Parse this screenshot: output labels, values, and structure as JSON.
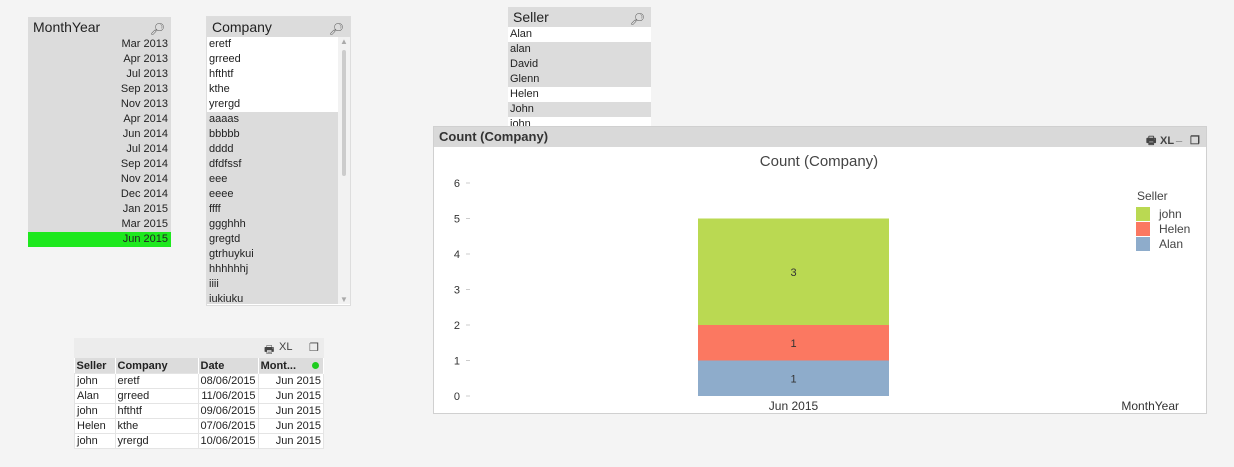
{
  "monthyear": {
    "title": "MonthYear",
    "items": [
      {
        "label": "Mar 2013",
        "selected": false
      },
      {
        "label": "Apr 2013",
        "selected": false
      },
      {
        "label": "Jul 2013",
        "selected": false
      },
      {
        "label": "Sep 2013",
        "selected": false
      },
      {
        "label": "Nov 2013",
        "selected": false
      },
      {
        "label": "Apr 2014",
        "selected": false
      },
      {
        "label": "Jun 2014",
        "selected": false
      },
      {
        "label": "Jul 2014",
        "selected": false
      },
      {
        "label": "Sep 2014",
        "selected": false
      },
      {
        "label": "Nov 2014",
        "selected": false
      },
      {
        "label": "Dec 2014",
        "selected": false
      },
      {
        "label": "Jan 2015",
        "selected": false
      },
      {
        "label": "Mar 2015",
        "selected": false
      },
      {
        "label": "Jun 2015",
        "selected": true
      }
    ]
  },
  "company": {
    "title": "Company",
    "items": [
      {
        "label": "eretf",
        "state": "possible"
      },
      {
        "label": "grreed",
        "state": "possible"
      },
      {
        "label": "hfthtf",
        "state": "possible"
      },
      {
        "label": "kthe",
        "state": "possible"
      },
      {
        "label": "yrergd",
        "state": "possible"
      },
      {
        "label": "aaaas",
        "state": "excluded"
      },
      {
        "label": "bbbbb",
        "state": "excluded"
      },
      {
        "label": "dddd",
        "state": "excluded"
      },
      {
        "label": "dfdfssf",
        "state": "excluded"
      },
      {
        "label": "eee",
        "state": "excluded"
      },
      {
        "label": "eeee",
        "state": "excluded"
      },
      {
        "label": "ffff",
        "state": "excluded"
      },
      {
        "label": "ggghhh",
        "state": "excluded"
      },
      {
        "label": "gregtd",
        "state": "excluded"
      },
      {
        "label": "gtrhuykui",
        "state": "excluded"
      },
      {
        "label": "hhhhhhj",
        "state": "excluded"
      },
      {
        "label": "iiii",
        "state": "excluded"
      },
      {
        "label": "iukiuku",
        "state": "excluded"
      }
    ]
  },
  "seller": {
    "title": "Seller",
    "items": [
      {
        "label": "Alan",
        "state": "possible"
      },
      {
        "label": "alan",
        "state": "excluded"
      },
      {
        "label": "David",
        "state": "excluded"
      },
      {
        "label": "Glenn",
        "state": "excluded"
      },
      {
        "label": "Helen",
        "state": "possible"
      },
      {
        "label": "John",
        "state": "excluded"
      },
      {
        "label": "john",
        "state": "possible"
      }
    ]
  },
  "table": {
    "controls": {
      "print": "🖶",
      "xl": "XL",
      "restore": "❐"
    },
    "headers": [
      "Seller",
      "Company",
      "Date",
      "Mont..."
    ],
    "rows": [
      [
        "john",
        "eretf",
        "08/06/2015",
        "Jun 2015"
      ],
      [
        "Alan",
        "grreed",
        "11/06/2015",
        "Jun 2015"
      ],
      [
        "john",
        "hfthtf",
        "09/06/2015",
        "Jun 2015"
      ],
      [
        "Helen",
        "kthe",
        "07/06/2015",
        "Jun 2015"
      ],
      [
        "john",
        "yrergd",
        "10/06/2015",
        "Jun 2015"
      ]
    ]
  },
  "chartbox": {
    "caption": "Count (Company)",
    "controls": {
      "print": "🖶",
      "xl": "XL",
      "minimize": "_",
      "restore": "❐"
    }
  },
  "chart_data": {
    "type": "bar",
    "stacked": true,
    "title": "Count (Company)",
    "xlabel": "MonthYear",
    "ylabel": "",
    "ylim": [
      0,
      6
    ],
    "yticks": [
      0,
      1,
      2,
      3,
      4,
      5,
      6
    ],
    "categories": [
      "Jun 2015"
    ],
    "legend_title": "Seller",
    "legend_position": "right",
    "series": [
      {
        "name": "Alan",
        "values": [
          1
        ],
        "color": "#8eaccb"
      },
      {
        "name": "Helen",
        "values": [
          1
        ],
        "color": "#fb7861"
      },
      {
        "name": "john",
        "values": [
          3
        ],
        "color": "#bad952"
      }
    ],
    "data_labels": true
  }
}
